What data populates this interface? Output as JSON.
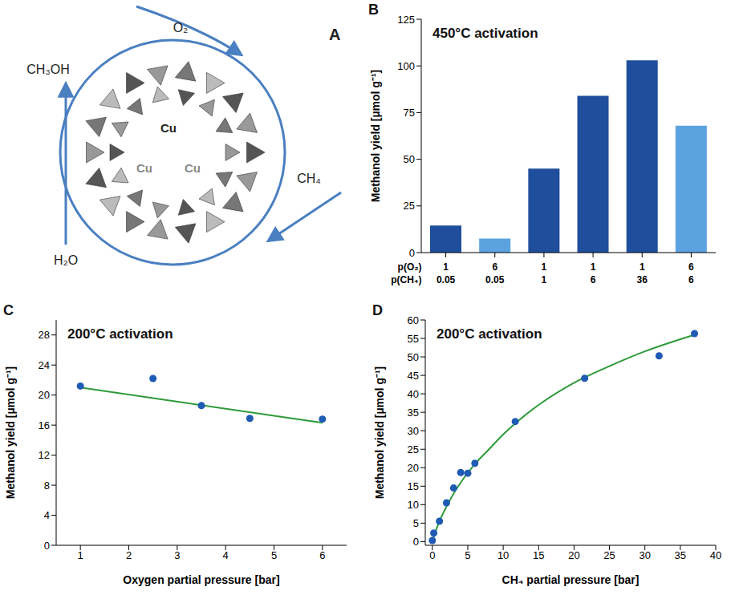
{
  "diagram": {
    "panel": "A",
    "center_labels": [
      "Cu",
      "Cu",
      "Cu"
    ],
    "arrows": [
      {
        "from": "O₂"
      },
      {
        "from": "CH₄"
      },
      {
        "from": "H₂O",
        "to": "CH₃OH"
      }
    ]
  },
  "chart_data": [
    {
      "panel": "B",
      "type": "bar",
      "title": "450°C activation",
      "y_label": "Methanol yield [µmol g⁻¹]",
      "x_rows": [
        {
          "label": "p(O₂)",
          "values": [
            1,
            6,
            1,
            1,
            1,
            6
          ]
        },
        {
          "label": "p(CH₄)",
          "values": [
            0.05,
            0.05,
            1,
            6,
            36,
            6
          ]
        }
      ],
      "values": [
        14.5,
        7.5,
        45,
        84,
        103,
        68
      ],
      "colors": [
        "#1f4e9c",
        "#5ba3e0",
        "#1f4e9c",
        "#1f4e9c",
        "#1f4e9c",
        "#5ba3e0"
      ],
      "ylim": [
        0,
        125
      ],
      "yticks": [
        0,
        25,
        50,
        75,
        100,
        125
      ],
      "grid": false
    },
    {
      "panel": "C",
      "type": "scatter",
      "title": "200°C activation",
      "x_label": "Oxygen partial pressure [bar]",
      "y_label": "Methanol yield [µmol g⁻¹]",
      "series": [
        {
          "type": "scatter",
          "marker": "circle",
          "color": "#1f5bb5",
          "x": [
            1,
            2.5,
            3.5,
            4.5,
            6
          ],
          "values": [
            21.2,
            22.2,
            18.6,
            16.9,
            16.8
          ]
        },
        {
          "type": "line",
          "line_style": "solid",
          "color": "#2e9a3a",
          "x": [
            1,
            6
          ],
          "values": [
            21,
            16.3
          ]
        }
      ],
      "xlim": [
        0.5,
        6.5
      ],
      "xticks": [
        1,
        2,
        3,
        4,
        5,
        6
      ],
      "ylim": [
        0,
        30
      ],
      "yticks": [
        0,
        4,
        8,
        12,
        16,
        20,
        24,
        28
      ],
      "grid": false
    },
    {
      "panel": "D",
      "type": "scatter",
      "title": "200°C activation",
      "x_label": "CH₄ partial pressure [bar]",
      "y_label": "Methanol yield [µmol g⁻¹]",
      "series": [
        {
          "type": "scatter",
          "marker": "circle",
          "color": "#1f5bb5",
          "x": [
            0,
            0.2,
            1,
            2,
            3,
            4,
            5,
            6,
            11.7,
            21.5,
            32,
            37
          ],
          "values": [
            0.3,
            2.3,
            5.5,
            10.5,
            14.5,
            18.7,
            18.5,
            21.2,
            32.5,
            44.2,
            50.3,
            56.3
          ]
        },
        {
          "type": "line",
          "line_style": "solid",
          "color": "#2e9a3a",
          "x": [
            0,
            0.5,
            1,
            2,
            3,
            4,
            6,
            8,
            10,
            12,
            15,
            20,
            25,
            30,
            37
          ],
          "values": [
            0,
            3,
            5.5,
            9.5,
            13,
            16,
            21,
            25,
            29,
            32.5,
            37,
            43,
            47.5,
            51.5,
            56
          ]
        }
      ],
      "xlim": [
        -1,
        40
      ],
      "xticks": [
        0,
        5,
        10,
        15,
        20,
        25,
        30,
        35,
        40
      ],
      "ylim": [
        -1,
        60
      ],
      "yticks": [
        0,
        5,
        10,
        15,
        20,
        25,
        30,
        35,
        40,
        45,
        50,
        55,
        60
      ],
      "grid": false
    }
  ]
}
